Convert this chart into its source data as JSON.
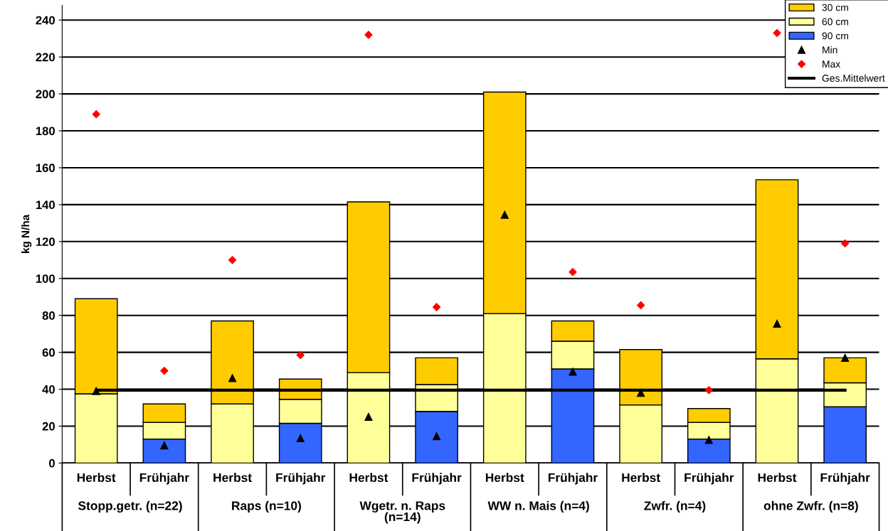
{
  "chart_data": {
    "type": "bar",
    "stacked": true,
    "ylabel": "kg N/ha",
    "categories": [
      "Herbst",
      "Frühjahr",
      "Herbst",
      "Frühjahr",
      "Herbst",
      "Frühjahr",
      "Herbst",
      "Frühjahr",
      "Herbst",
      "Frühjahr",
      "Herbst",
      "Frühjahr"
    ],
    "annotations": [
      "Stopp.getr. (n=22)",
      "Raps (n=10)",
      "Wgetr. n. Raps\n(n=14)",
      "WW n. Mais (n=4)",
      "Zwfr. (n=4)",
      "ohne Zwfr. (n=8)"
    ],
    "series": [
      {
        "name": "90 cm",
        "color": "#3366ff",
        "values": [
          0,
          13,
          0,
          21.5,
          0,
          28,
          0,
          51,
          0,
          13,
          0,
          30.5
        ]
      },
      {
        "name": "60 cm",
        "color": "#ffff99",
        "values": [
          37.5,
          9,
          32,
          13,
          49,
          14.5,
          81,
          15,
          31.5,
          9,
          56.5,
          13
        ]
      },
      {
        "name": "30 cm",
        "color": "#ffcc00",
        "values": [
          51.5,
          10,
          45,
          11,
          92.5,
          14.5,
          120,
          11,
          30,
          7.5,
          97,
          13.5
        ]
      },
      {
        "name": "Min",
        "type": "scatter",
        "marker": "triangle",
        "color": "#000000",
        "values": [
          39,
          9.5,
          46,
          13.5,
          25,
          14.5,
          134.5,
          49.5,
          38,
          12.5,
          75.5,
          57
        ]
      },
      {
        "name": "Max",
        "type": "scatter",
        "marker": "diamond",
        "color": "#ff0000",
        "values": [
          189,
          50,
          110,
          58.5,
          232,
          84.5,
          null,
          103.5,
          85.5,
          39.5,
          233,
          119
        ]
      },
      {
        "name": "Ges.Mittelwert",
        "type": "line",
        "color": "#000000",
        "values": [
          39.5,
          39.5,
          39.5,
          39.5,
          39.5,
          39.5,
          39.5,
          39.5,
          39.5,
          39.5,
          39.5,
          39.5
        ]
      }
    ],
    "ylim": [
      0,
      248
    ],
    "yticks": [
      0,
      20,
      40,
      60,
      80,
      100,
      120,
      140,
      160,
      180,
      200,
      220,
      240
    ],
    "grid": "y",
    "legend": "top right"
  }
}
